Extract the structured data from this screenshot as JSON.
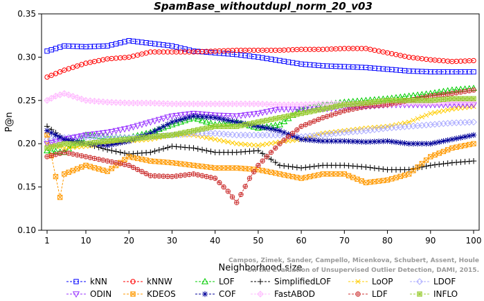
{
  "chart_data": {
    "type": "line",
    "title": "SpamBase_withoutdupl_norm_20_v03",
    "xlabel": "Neighborhood size",
    "ylabel": "P@n",
    "xlim": [
      0,
      100
    ],
    "ylim": [
      0.1,
      0.35
    ],
    "xticks": [
      1,
      10,
      20,
      30,
      40,
      50,
      60,
      70,
      80,
      90,
      100
    ],
    "yticks": [
      0.1,
      0.15,
      0.2,
      0.25,
      0.3,
      0.35
    ],
    "grid": false,
    "legend_position": "bottom",
    "credit": "Campos, Zimek, Sander, Campello, Micenkova, Schubert, Assent, Houle\nOn the Evaluation of Unsupervised Outlier Detection, DAMI, 2015.",
    "series": [
      {
        "name": "kNN",
        "color": "#0000ff",
        "marker": "square",
        "points": [
          [
            1,
            0.307
          ],
          [
            5,
            0.313
          ],
          [
            10,
            0.312
          ],
          [
            15,
            0.313
          ],
          [
            20,
            0.319
          ],
          [
            25,
            0.316
          ],
          [
            30,
            0.313
          ],
          [
            35,
            0.307
          ],
          [
            40,
            0.305
          ],
          [
            45,
            0.303
          ],
          [
            50,
            0.3
          ],
          [
            55,
            0.296
          ],
          [
            60,
            0.292
          ],
          [
            65,
            0.29
          ],
          [
            70,
            0.289
          ],
          [
            75,
            0.288
          ],
          [
            80,
            0.286
          ],
          [
            85,
            0.284
          ],
          [
            90,
            0.283
          ],
          [
            95,
            0.283
          ],
          [
            100,
            0.283
          ]
        ]
      },
      {
        "name": "kNNW",
        "color": "#ff0000",
        "marker": "circle",
        "points": [
          [
            1,
            0.277
          ],
          [
            5,
            0.285
          ],
          [
            10,
            0.293
          ],
          [
            15,
            0.298
          ],
          [
            20,
            0.3
          ],
          [
            25,
            0.306
          ],
          [
            30,
            0.306
          ],
          [
            35,
            0.306
          ],
          [
            40,
            0.307
          ],
          [
            45,
            0.308
          ],
          [
            50,
            0.308
          ],
          [
            55,
            0.308
          ],
          [
            60,
            0.309
          ],
          [
            65,
            0.309
          ],
          [
            70,
            0.31
          ],
          [
            75,
            0.31
          ],
          [
            80,
            0.305
          ],
          [
            85,
            0.3
          ],
          [
            90,
            0.297
          ],
          [
            95,
            0.295
          ],
          [
            100,
            0.296
          ]
        ]
      },
      {
        "name": "LOF",
        "color": "#00cc00",
        "marker": "triangle",
        "points": [
          [
            1,
            0.192
          ],
          [
            5,
            0.19
          ],
          [
            10,
            0.21
          ],
          [
            15,
            0.208
          ],
          [
            20,
            0.207
          ],
          [
            25,
            0.213
          ],
          [
            30,
            0.222
          ],
          [
            35,
            0.23
          ],
          [
            40,
            0.222
          ],
          [
            45,
            0.225
          ],
          [
            50,
            0.218
          ],
          [
            55,
            0.222
          ],
          [
            60,
            0.24
          ],
          [
            65,
            0.245
          ],
          [
            70,
            0.248
          ],
          [
            75,
            0.25
          ],
          [
            80,
            0.252
          ],
          [
            85,
            0.255
          ],
          [
            90,
            0.258
          ],
          [
            95,
            0.262
          ],
          [
            100,
            0.264
          ]
        ]
      },
      {
        "name": "SimplifiedLOF",
        "color": "#000000",
        "marker": "plus",
        "points": [
          [
            1,
            0.22
          ],
          [
            5,
            0.205
          ],
          [
            10,
            0.2
          ],
          [
            15,
            0.193
          ],
          [
            20,
            0.188
          ],
          [
            25,
            0.19
          ],
          [
            30,
            0.197
          ],
          [
            35,
            0.195
          ],
          [
            40,
            0.19
          ],
          [
            45,
            0.19
          ],
          [
            50,
            0.192
          ],
          [
            55,
            0.175
          ],
          [
            60,
            0.172
          ],
          [
            65,
            0.175
          ],
          [
            70,
            0.175
          ],
          [
            75,
            0.173
          ],
          [
            80,
            0.17
          ],
          [
            85,
            0.17
          ],
          [
            90,
            0.175
          ],
          [
            95,
            0.178
          ],
          [
            100,
            0.18
          ]
        ]
      },
      {
        "name": "LoOP",
        "color": "#ffcc00",
        "marker": "x",
        "points": [
          [
            1,
            0.2
          ],
          [
            5,
            0.195
          ],
          [
            10,
            0.197
          ],
          [
            15,
            0.2
          ],
          [
            20,
            0.203
          ],
          [
            25,
            0.205
          ],
          [
            30,
            0.21
          ],
          [
            35,
            0.21
          ],
          [
            40,
            0.205
          ],
          [
            45,
            0.2
          ],
          [
            50,
            0.198
          ],
          [
            55,
            0.202
          ],
          [
            60,
            0.205
          ],
          [
            65,
            0.212
          ],
          [
            70,
            0.215
          ],
          [
            75,
            0.218
          ],
          [
            80,
            0.22
          ],
          [
            85,
            0.225
          ],
          [
            90,
            0.235
          ],
          [
            95,
            0.24
          ],
          [
            100,
            0.243
          ]
        ]
      },
      {
        "name": "LDOF",
        "color": "#aaaaff",
        "marker": "diamond",
        "points": [
          [
            1,
            0.205
          ],
          [
            5,
            0.207
          ],
          [
            10,
            0.208
          ],
          [
            15,
            0.207
          ],
          [
            20,
            0.207
          ],
          [
            25,
            0.208
          ],
          [
            30,
            0.21
          ],
          [
            35,
            0.212
          ],
          [
            40,
            0.212
          ],
          [
            45,
            0.21
          ],
          [
            50,
            0.21
          ],
          [
            55,
            0.21
          ],
          [
            60,
            0.208
          ],
          [
            65,
            0.21
          ],
          [
            70,
            0.213
          ],
          [
            75,
            0.215
          ],
          [
            80,
            0.218
          ],
          [
            85,
            0.22
          ],
          [
            90,
            0.222
          ],
          [
            95,
            0.224
          ],
          [
            100,
            0.225
          ]
        ]
      },
      {
        "name": "ODIN",
        "color": "#9933ff",
        "marker": "triangle-down",
        "points": [
          [
            1,
            0.2
          ],
          [
            5,
            0.205
          ],
          [
            10,
            0.21
          ],
          [
            15,
            0.213
          ],
          [
            20,
            0.218
          ],
          [
            25,
            0.225
          ],
          [
            30,
            0.232
          ],
          [
            35,
            0.235
          ],
          [
            40,
            0.233
          ],
          [
            45,
            0.232
          ],
          [
            50,
            0.235
          ],
          [
            55,
            0.24
          ],
          [
            60,
            0.24
          ],
          [
            65,
            0.24
          ],
          [
            70,
            0.242
          ],
          [
            75,
            0.243
          ],
          [
            80,
            0.245
          ],
          [
            85,
            0.245
          ],
          [
            90,
            0.245
          ],
          [
            95,
            0.245
          ],
          [
            100,
            0.245
          ]
        ]
      },
      {
        "name": "KDEOS",
        "color": "#ff9900",
        "marker": "square-x",
        "points": [
          [
            1,
            0.21
          ],
          [
            4,
            0.138
          ],
          [
            5,
            0.165
          ],
          [
            10,
            0.175
          ],
          [
            15,
            0.168
          ],
          [
            20,
            0.185
          ],
          [
            25,
            0.18
          ],
          [
            30,
            0.178
          ],
          [
            35,
            0.175
          ],
          [
            40,
            0.172
          ],
          [
            45,
            0.172
          ],
          [
            50,
            0.17
          ],
          [
            55,
            0.165
          ],
          [
            60,
            0.16
          ],
          [
            65,
            0.165
          ],
          [
            70,
            0.165
          ],
          [
            75,
            0.155
          ],
          [
            80,
            0.158
          ],
          [
            85,
            0.165
          ],
          [
            90,
            0.185
          ],
          [
            95,
            0.195
          ],
          [
            100,
            0.2
          ]
        ]
      },
      {
        "name": "COF",
        "color": "#000099",
        "marker": "asterisk",
        "points": [
          [
            1,
            0.215
          ],
          [
            5,
            0.205
          ],
          [
            10,
            0.2
          ],
          [
            15,
            0.198
          ],
          [
            20,
            0.203
          ],
          [
            25,
            0.212
          ],
          [
            30,
            0.225
          ],
          [
            35,
            0.232
          ],
          [
            40,
            0.23
          ],
          [
            45,
            0.225
          ],
          [
            50,
            0.22
          ],
          [
            55,
            0.215
          ],
          [
            60,
            0.205
          ],
          [
            65,
            0.203
          ],
          [
            70,
            0.203
          ],
          [
            75,
            0.202
          ],
          [
            80,
            0.203
          ],
          [
            85,
            0.2
          ],
          [
            90,
            0.2
          ],
          [
            95,
            0.205
          ],
          [
            100,
            0.21
          ]
        ]
      },
      {
        "name": "FastABOD",
        "color": "#ffbbff",
        "marker": "diamond-plus",
        "points": [
          [
            1,
            0.25
          ],
          [
            3,
            0.255
          ],
          [
            5,
            0.258
          ],
          [
            10,
            0.25
          ],
          [
            15,
            0.248
          ],
          [
            20,
            0.247
          ],
          [
            25,
            0.247
          ],
          [
            30,
            0.246
          ],
          [
            35,
            0.246
          ],
          [
            40,
            0.246
          ],
          [
            45,
            0.246
          ],
          [
            50,
            0.246
          ],
          [
            55,
            0.245
          ],
          [
            60,
            0.245
          ],
          [
            65,
            0.246
          ],
          [
            70,
            0.246
          ],
          [
            75,
            0.246
          ],
          [
            80,
            0.246
          ],
          [
            85,
            0.247
          ],
          [
            90,
            0.247
          ],
          [
            95,
            0.248
          ],
          [
            100,
            0.248
          ]
        ]
      },
      {
        "name": "LDF",
        "color": "#cc3333",
        "marker": "circle-plus",
        "points": [
          [
            1,
            0.185
          ],
          [
            5,
            0.19
          ],
          [
            10,
            0.185
          ],
          [
            15,
            0.18
          ],
          [
            20,
            0.175
          ],
          [
            25,
            0.163
          ],
          [
            30,
            0.162
          ],
          [
            35,
            0.165
          ],
          [
            40,
            0.16
          ],
          [
            43,
            0.145
          ],
          [
            45,
            0.132
          ],
          [
            48,
            0.16
          ],
          [
            50,
            0.175
          ],
          [
            55,
            0.2
          ],
          [
            60,
            0.22
          ],
          [
            65,
            0.23
          ],
          [
            70,
            0.238
          ],
          [
            75,
            0.243
          ],
          [
            80,
            0.245
          ],
          [
            85,
            0.25
          ],
          [
            90,
            0.255
          ],
          [
            95,
            0.258
          ],
          [
            100,
            0.262
          ]
        ]
      },
      {
        "name": "INFLO",
        "color": "#99cc33",
        "marker": "square-cross",
        "points": [
          [
            1,
            0.195
          ],
          [
            5,
            0.2
          ],
          [
            10,
            0.2
          ],
          [
            15,
            0.203
          ],
          [
            20,
            0.205
          ],
          [
            25,
            0.208
          ],
          [
            30,
            0.21
          ],
          [
            35,
            0.215
          ],
          [
            40,
            0.22
          ],
          [
            45,
            0.22
          ],
          [
            50,
            0.225
          ],
          [
            55,
            0.23
          ],
          [
            60,
            0.235
          ],
          [
            65,
            0.24
          ],
          [
            70,
            0.245
          ],
          [
            75,
            0.247
          ],
          [
            80,
            0.25
          ],
          [
            85,
            0.25
          ],
          [
            90,
            0.25
          ],
          [
            95,
            0.252
          ],
          [
            100,
            0.252
          ]
        ]
      }
    ]
  }
}
